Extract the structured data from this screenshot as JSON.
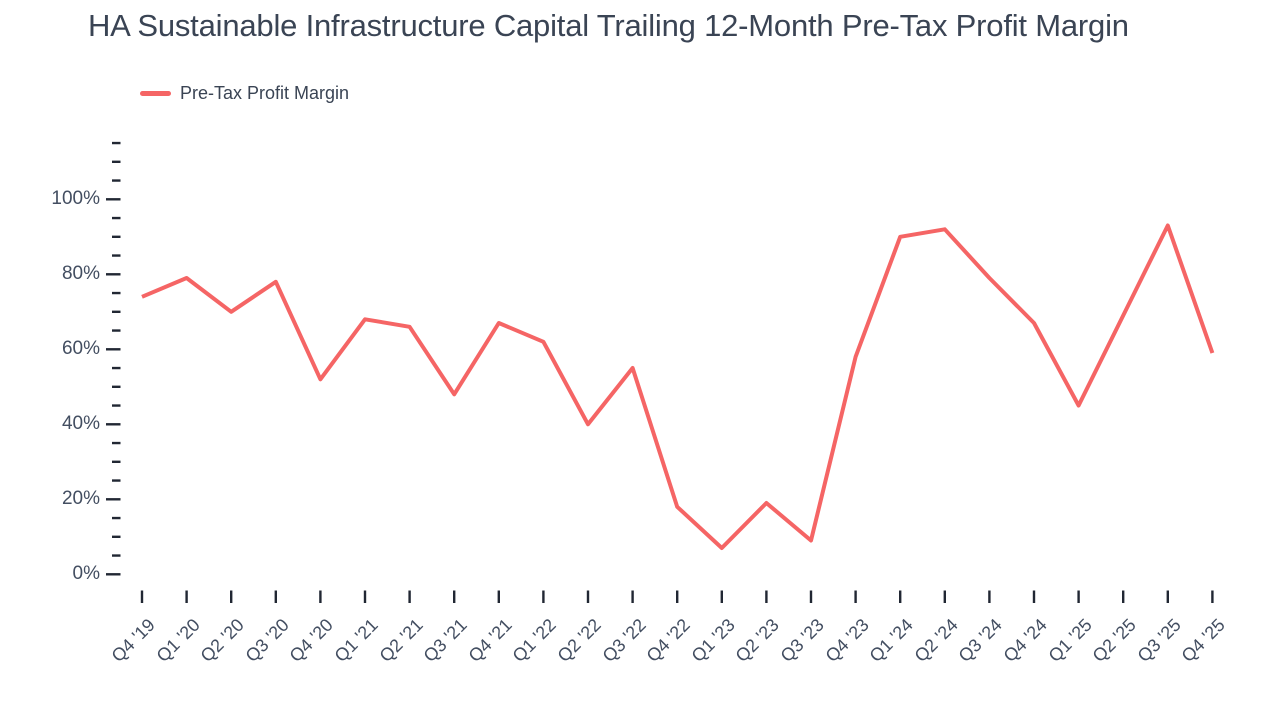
{
  "header": {
    "title": "HA Sustainable Infrastructure Capital Trailing 12-Month Pre-Tax Profit Margin"
  },
  "legend": {
    "items": [
      {
        "label": "Pre-Tax Profit Margin",
        "color": "#f56565"
      }
    ]
  },
  "chart_data": {
    "type": "line",
    "title": "HA Sustainable Infrastructure Capital Trailing 12-Month Pre-Tax Profit Margin",
    "categories": [
      "Q4 '19",
      "Q1 '20",
      "Q2 '20",
      "Q3 '20",
      "Q4 '20",
      "Q1 '21",
      "Q2 '21",
      "Q3 '21",
      "Q4 '21",
      "Q1 '22",
      "Q2 '22",
      "Q3 '22",
      "Q4 '22",
      "Q1 '23",
      "Q2 '23",
      "Q3 '23",
      "Q4 '23",
      "Q1 '24",
      "Q2 '24",
      "Q3 '24",
      "Q4 '24",
      "Q1 '25",
      "Q2 '25",
      "Q3 '25",
      "Q4 '25"
    ],
    "series": [
      {
        "name": "Pre-Tax Profit Margin",
        "color": "#f56565",
        "values": [
          74,
          79,
          70,
          78,
          52,
          68,
          66,
          48,
          67,
          62,
          40,
          55,
          18,
          7,
          19,
          9,
          58,
          90,
          92,
          79,
          67,
          45,
          69,
          93,
          59
        ]
      }
    ],
    "unit": "%",
    "xlabel": "",
    "ylabel": "",
    "ylim": [
      0,
      115
    ],
    "y_major_tick_step": 20,
    "y_minor_tick_step": 5,
    "y_tick_labels": [
      "0%",
      "20%",
      "40%",
      "60%",
      "80%",
      "100%"
    ],
    "grid": false,
    "legend_position": "top-left"
  },
  "colors": {
    "series_line": "#f56565",
    "tick": "#212733",
    "axis_label": "#434e61",
    "title": "#3a4454",
    "background": "#ffffff"
  }
}
